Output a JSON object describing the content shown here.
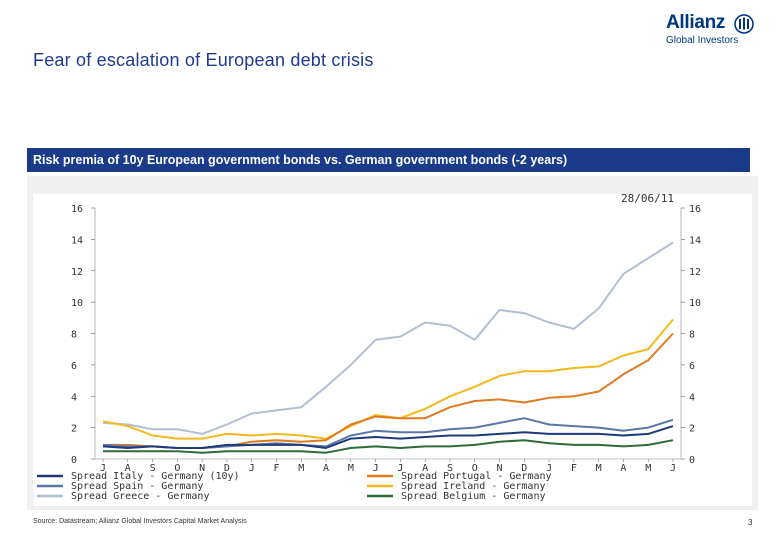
{
  "header": {
    "title": "Fear of escalation of European debt crisis"
  },
  "logo": {
    "word": "Allianz",
    "sub": "Global Investors",
    "colors": {
      "brand": "#003781"
    }
  },
  "banner": {
    "text": "Risk premia of 10y European government bonds vs. German government bonds (-2 years)"
  },
  "footer": {
    "source": "Source: Datastream; Allianz Global Investors Capital Market Analysis",
    "page": "3"
  },
  "chart_data": {
    "type": "line",
    "date_label": "28/06/11",
    "ylim": [
      0,
      16
    ],
    "yticks": [
      "0",
      "2",
      "4",
      "6",
      "8",
      "10",
      "12",
      "14",
      "16"
    ],
    "months": [
      "J",
      "A",
      "S",
      "O",
      "N",
      "D",
      "J",
      "F",
      "M",
      "A",
      "M",
      "J",
      "J",
      "A",
      "S",
      "O",
      "N",
      "D",
      "J",
      "F",
      "M",
      "A",
      "M",
      "J"
    ],
    "series": [
      {
        "name": "Spread Italy - Germany (10y)",
        "color": "#1f3a7a",
        "values": [
          0.8,
          0.7,
          0.8,
          0.7,
          0.7,
          0.9,
          0.9,
          0.9,
          0.9,
          0.7,
          1.3,
          1.4,
          1.3,
          1.4,
          1.5,
          1.5,
          1.6,
          1.7,
          1.6,
          1.6,
          1.6,
          1.5,
          1.6,
          2.1
        ]
      },
      {
        "name": "Spread Spain - Germany",
        "color": "#5a77a6",
        "values": [
          0.9,
          0.8,
          0.8,
          0.7,
          0.7,
          0.8,
          0.9,
          1.0,
          0.9,
          0.8,
          1.5,
          1.8,
          1.7,
          1.7,
          1.9,
          2.0,
          2.3,
          2.6,
          2.2,
          2.1,
          2.0,
          1.8,
          2.0,
          2.5
        ]
      },
      {
        "name": "Spread Greece - Germany",
        "color": "#b2bfd1",
        "values": [
          2.3,
          2.2,
          1.9,
          1.9,
          1.6,
          2.2,
          2.9,
          3.1,
          3.3,
          4.6,
          6.0,
          7.6,
          7.8,
          8.7,
          8.5,
          7.6,
          9.5,
          9.3,
          8.7,
          8.3,
          9.6,
          11.8,
          12.8,
          13.8
        ]
      },
      {
        "name": "Spread Portugal - Germany",
        "color": "#e07b20",
        "values": [
          0.9,
          0.9,
          0.8,
          0.7,
          0.7,
          0.8,
          1.1,
          1.2,
          1.1,
          1.2,
          2.2,
          2.7,
          2.6,
          2.6,
          3.3,
          3.7,
          3.8,
          3.6,
          3.9,
          4.0,
          4.3,
          5.4,
          6.3,
          8.0
        ]
      },
      {
        "name": "Spread Ireland - Germany",
        "color": "#f2b81e",
        "values": [
          2.4,
          2.1,
          1.5,
          1.3,
          1.3,
          1.6,
          1.5,
          1.6,
          1.5,
          1.3,
          2.1,
          2.8,
          2.6,
          3.2,
          4.0,
          4.6,
          5.3,
          5.6,
          5.6,
          5.8,
          5.9,
          6.6,
          7.0,
          8.9
        ]
      },
      {
        "name": "Spread Belgium - Germany",
        "color": "#2f6b3a",
        "values": [
          0.5,
          0.5,
          0.5,
          0.5,
          0.4,
          0.5,
          0.5,
          0.5,
          0.5,
          0.4,
          0.7,
          0.8,
          0.7,
          0.8,
          0.8,
          0.9,
          1.1,
          1.2,
          1.0,
          0.9,
          0.9,
          0.8,
          0.9,
          1.2
        ]
      }
    ],
    "legend": [
      "Spread Italy - Germany (10y)",
      "Spread Spain - Germany",
      "Spread Greece - Germany",
      "Spread Portugal - Germany",
      "Spread Ireland - Germany",
      "Spread Belgium - Germany"
    ],
    "grid": false
  }
}
